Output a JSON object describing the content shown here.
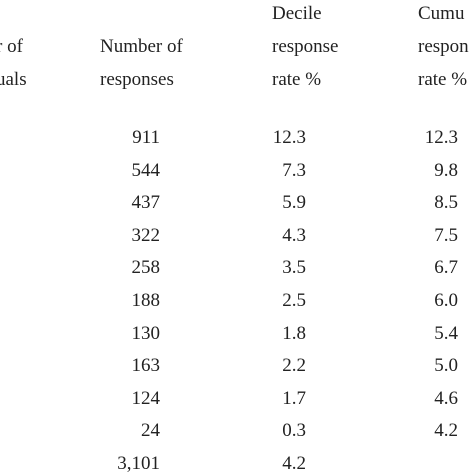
{
  "table": {
    "headers": [
      {
        "lines": [
          "r of",
          "uals"
        ]
      },
      {
        "lines": [
          "Number of",
          "responses"
        ]
      },
      {
        "lines": [
          "Decile",
          "response",
          "rate %"
        ]
      },
      {
        "lines": [
          "Cumu",
          "respon",
          "rate %"
        ]
      }
    ],
    "rows": [
      [
        "911",
        "12.3",
        "12.3"
      ],
      [
        "544",
        "7.3",
        "9.8"
      ],
      [
        "437",
        "5.9",
        "8.5"
      ],
      [
        "322",
        "4.3",
        "7.5"
      ],
      [
        "258",
        "3.5",
        "6.7"
      ],
      [
        "188",
        "2.5",
        "6.0"
      ],
      [
        "130",
        "1.8",
        "5.4"
      ],
      [
        "163",
        "2.2",
        "5.0"
      ],
      [
        "124",
        "1.7",
        "4.6"
      ],
      [
        "24",
        "0.3",
        "4.2"
      ],
      [
        "3,101",
        "4.2"
      ]
    ]
  }
}
